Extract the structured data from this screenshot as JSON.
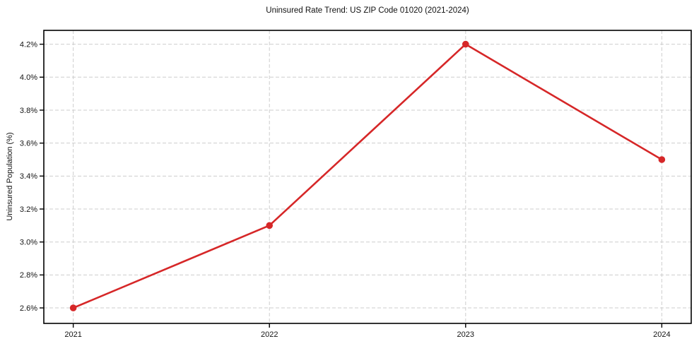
{
  "chart_data": {
    "type": "line",
    "title": "Uninsured Rate Trend: US ZIP Code 01020 (2021-2024)",
    "xlabel": "",
    "ylabel": "Uninsured Population (%)",
    "x": [
      2021,
      2022,
      2023,
      2024
    ],
    "x_tick_labels": [
      "2021",
      "2022",
      "2023",
      "2024"
    ],
    "series": [
      {
        "name": "Uninsured Rate",
        "values": [
          2.6,
          3.1,
          4.2,
          3.5
        ],
        "color": "#d62728",
        "marker": "circle"
      }
    ],
    "y_ticks": [
      2.6,
      2.8,
      3.0,
      3.2,
      3.4,
      3.6,
      3.8,
      4.0,
      4.2
    ],
    "y_tick_labels": [
      "2.6%",
      "2.8%",
      "3.0%",
      "3.2%",
      "3.4%",
      "3.6%",
      "3.8%",
      "4.0%",
      "4.2%"
    ],
    "ylim": [
      2.506,
      4.284
    ],
    "grid": true,
    "grid_style": "dashed",
    "grid_color": "#cdcdcd",
    "spine_color": "#000000",
    "legend_position": "none"
  }
}
